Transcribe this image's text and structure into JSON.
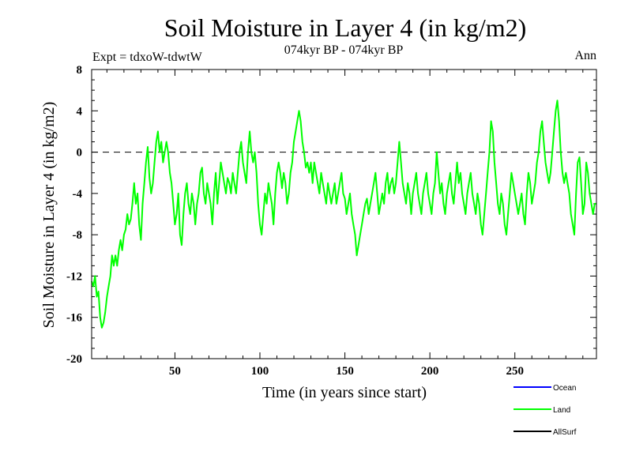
{
  "chart_data": {
    "type": "line",
    "title": "Soil Moisture in Layer 4 (in kg/m2)",
    "subtitle": "074kyr BP - 074kyr BP",
    "experiment": "Expt = tdxoW-tdwtW",
    "season": "Ann",
    "xlabel": "Time (in years since start)",
    "ylabel": "Soil Moisture in Layer 4 (in kg/m2)",
    "xlim": [
      1,
      298
    ],
    "ylim": [
      -20,
      8
    ],
    "x_ticks": [
      50,
      100,
      150,
      200,
      250
    ],
    "y_ticks": [
      -20,
      -16,
      -12,
      -8,
      -4,
      0,
      4,
      8
    ],
    "x_tick_labels": [
      "50",
      "100",
      "150",
      "200",
      "250"
    ],
    "y_tick_labels": [
      "-20",
      "-16",
      "-12",
      "-8",
      "-4",
      "0",
      "4",
      "8"
    ],
    "reference_line": 0,
    "legend": [
      {
        "name": "Ocean",
        "color": "#0000ff"
      },
      {
        "name": "Land",
        "color": "#00ff00"
      },
      {
        "name": "AllSurf",
        "color": "#000000"
      }
    ],
    "series": [
      {
        "name": "Land",
        "color": "#00ff00",
        "anchors": [
          [
            1,
            -12.5
          ],
          [
            2,
            -13
          ],
          [
            3,
            -12
          ],
          [
            4,
            -14
          ],
          [
            5,
            -13.5
          ],
          [
            6,
            -16
          ],
          [
            7,
            -17
          ],
          [
            8,
            -16.5
          ],
          [
            9,
            -15.5
          ],
          [
            10,
            -14
          ],
          [
            11,
            -13
          ],
          [
            12,
            -12
          ],
          [
            13,
            -10
          ],
          [
            14,
            -11
          ],
          [
            15,
            -10
          ],
          [
            16,
            -11
          ],
          [
            17,
            -9.5
          ],
          [
            18,
            -8.5
          ],
          [
            19,
            -9.5
          ],
          [
            20,
            -8
          ],
          [
            21,
            -7.5
          ],
          [
            22,
            -6
          ],
          [
            23,
            -7
          ],
          [
            24,
            -6.5
          ],
          [
            25,
            -5
          ],
          [
            26,
            -3
          ],
          [
            27,
            -5
          ],
          [
            28,
            -4
          ],
          [
            29,
            -7
          ],
          [
            30,
            -8.5
          ],
          [
            31,
            -5
          ],
          [
            32,
            -3
          ],
          [
            33,
            -1
          ],
          [
            34,
            0.5
          ],
          [
            35,
            -2.5
          ],
          [
            36,
            -4
          ],
          [
            37,
            -3
          ],
          [
            38,
            -1
          ],
          [
            39,
            1
          ],
          [
            40,
            2
          ],
          [
            41,
            0
          ],
          [
            42,
            1
          ],
          [
            43,
            -1
          ],
          [
            44,
            0
          ],
          [
            45,
            1
          ],
          [
            46,
            0
          ],
          [
            47,
            -2
          ],
          [
            48,
            -3
          ],
          [
            49,
            -5
          ],
          [
            50,
            -7
          ],
          [
            51,
            -6
          ],
          [
            52,
            -4
          ],
          [
            53,
            -8
          ],
          [
            54,
            -9
          ],
          [
            55,
            -6
          ],
          [
            56,
            -4
          ],
          [
            57,
            -3
          ],
          [
            58,
            -5
          ],
          [
            59,
            -6
          ],
          [
            60,
            -4
          ],
          [
            61,
            -5
          ],
          [
            62,
            -7
          ],
          [
            63,
            -5
          ],
          [
            64,
            -4
          ],
          [
            65,
            -2
          ],
          [
            66,
            -1.5
          ],
          [
            67,
            -4
          ],
          [
            68,
            -5
          ],
          [
            69,
            -3
          ],
          [
            70,
            -4
          ],
          [
            71,
            -5
          ],
          [
            72,
            -7
          ],
          [
            73,
            -4
          ],
          [
            74,
            -2
          ],
          [
            75,
            -5
          ],
          [
            76,
            -3
          ],
          [
            77,
            -1
          ],
          [
            78,
            -2
          ],
          [
            79,
            -3
          ],
          [
            80,
            -4
          ],
          [
            81,
            -2.5
          ],
          [
            82,
            -3
          ],
          [
            83,
            -4
          ],
          [
            84,
            -2
          ],
          [
            85,
            -3
          ],
          [
            86,
            -4
          ],
          [
            87,
            -2
          ],
          [
            88,
            0
          ],
          [
            89,
            1
          ],
          [
            90,
            -1
          ],
          [
            91,
            -2
          ],
          [
            92,
            -3
          ],
          [
            93,
            0
          ],
          [
            94,
            2
          ],
          [
            95,
            0
          ],
          [
            96,
            -1
          ],
          [
            97,
            0
          ],
          [
            98,
            -2
          ],
          [
            99,
            -5
          ],
          [
            100,
            -7
          ],
          [
            101,
            -8
          ],
          [
            102,
            -6
          ],
          [
            103,
            -4
          ],
          [
            104,
            -5
          ],
          [
            105,
            -3
          ],
          [
            106,
            -4
          ],
          [
            107,
            -5
          ],
          [
            108,
            -7
          ],
          [
            109,
            -4
          ],
          [
            110,
            -2
          ],
          [
            111,
            -1
          ],
          [
            112,
            -2
          ],
          [
            113,
            -3.5
          ],
          [
            114,
            -2
          ],
          [
            115,
            -3
          ],
          [
            116,
            -5
          ],
          [
            117,
            -4
          ],
          [
            118,
            -2
          ],
          [
            119,
            -1
          ],
          [
            120,
            1
          ],
          [
            121,
            2
          ],
          [
            122,
            3
          ],
          [
            123,
            4
          ],
          [
            124,
            3
          ],
          [
            125,
            1
          ],
          [
            126,
            0
          ],
          [
            127,
            -1.5
          ],
          [
            128,
            -1
          ],
          [
            129,
            -2
          ],
          [
            130,
            -1
          ],
          [
            131,
            -3
          ],
          [
            132,
            -1
          ],
          [
            133,
            -2
          ],
          [
            134,
            -3
          ],
          [
            135,
            -4
          ],
          [
            136,
            -2
          ],
          [
            137,
            -3
          ],
          [
            138,
            -4
          ],
          [
            139,
            -5
          ],
          [
            140,
            -3
          ],
          [
            141,
            -4
          ],
          [
            142,
            -5
          ],
          [
            143,
            -4
          ],
          [
            144,
            -3
          ],
          [
            145,
            -5
          ],
          [
            146,
            -4
          ],
          [
            147,
            -3
          ],
          [
            148,
            -2
          ],
          [
            149,
            -4
          ],
          [
            150,
            -4.5
          ],
          [
            151,
            -6
          ],
          [
            152,
            -5
          ],
          [
            153,
            -4
          ],
          [
            154,
            -6
          ],
          [
            155,
            -7
          ],
          [
            156,
            -8
          ],
          [
            157,
            -10
          ],
          [
            158,
            -9
          ],
          [
            159,
            -8
          ],
          [
            160,
            -7
          ],
          [
            161,
            -6
          ],
          [
            162,
            -5
          ],
          [
            163,
            -4.5
          ],
          [
            164,
            -6
          ],
          [
            165,
            -5
          ],
          [
            166,
            -4
          ],
          [
            167,
            -3
          ],
          [
            168,
            -2
          ],
          [
            169,
            -4
          ],
          [
            170,
            -6
          ],
          [
            171,
            -5
          ],
          [
            172,
            -4
          ],
          [
            173,
            -5
          ],
          [
            174,
            -3
          ],
          [
            175,
            -2
          ],
          [
            176,
            -4
          ],
          [
            177,
            -3
          ],
          [
            178,
            -2.5
          ],
          [
            179,
            -4
          ],
          [
            180,
            -3
          ],
          [
            181,
            -1
          ],
          [
            182,
            1
          ],
          [
            183,
            -1
          ],
          [
            184,
            -3
          ],
          [
            185,
            -4
          ],
          [
            186,
            -5
          ],
          [
            187,
            -3
          ],
          [
            188,
            -4
          ],
          [
            189,
            -6
          ],
          [
            190,
            -4
          ],
          [
            191,
            -3
          ],
          [
            192,
            -2
          ],
          [
            193,
            -4
          ],
          [
            194,
            -5
          ],
          [
            195,
            -6
          ],
          [
            196,
            -4
          ],
          [
            197,
            -3
          ],
          [
            198,
            -2
          ],
          [
            199,
            -4
          ],
          [
            200,
            -5
          ],
          [
            201,
            -6
          ],
          [
            202,
            -4
          ],
          [
            203,
            -3
          ],
          [
            204,
            0
          ],
          [
            205,
            -2
          ],
          [
            206,
            -4
          ],
          [
            207,
            -3
          ],
          [
            208,
            -5
          ],
          [
            209,
            -6
          ],
          [
            210,
            -4
          ],
          [
            211,
            -3
          ],
          [
            212,
            -2
          ],
          [
            213,
            -4
          ],
          [
            214,
            -5
          ],
          [
            215,
            -3
          ],
          [
            216,
            -1
          ],
          [
            217,
            -3
          ],
          [
            218,
            -2
          ],
          [
            219,
            -4
          ],
          [
            220,
            -5
          ],
          [
            221,
            -6
          ],
          [
            222,
            -4
          ],
          [
            223,
            -3
          ],
          [
            224,
            -2
          ],
          [
            225,
            -4
          ],
          [
            226,
            -5
          ],
          [
            227,
            -6
          ],
          [
            228,
            -4
          ],
          [
            229,
            -5
          ],
          [
            230,
            -7
          ],
          [
            231,
            -8
          ],
          [
            232,
            -6
          ],
          [
            233,
            -4
          ],
          [
            234,
            -2
          ],
          [
            235,
            0
          ],
          [
            236,
            3
          ],
          [
            237,
            2
          ],
          [
            238,
            -1
          ],
          [
            239,
            -3
          ],
          [
            240,
            -5
          ],
          [
            241,
            -6
          ],
          [
            242,
            -4
          ],
          [
            243,
            -5
          ],
          [
            244,
            -7
          ],
          [
            245,
            -8
          ],
          [
            246,
            -6
          ],
          [
            247,
            -4
          ],
          [
            248,
            -2
          ],
          [
            249,
            -3
          ],
          [
            250,
            -4
          ],
          [
            251,
            -5
          ],
          [
            252,
            -6
          ],
          [
            253,
            -5
          ],
          [
            254,
            -4
          ],
          [
            255,
            -6
          ],
          [
            256,
            -7
          ],
          [
            257,
            -4
          ],
          [
            258,
            -2
          ],
          [
            259,
            -3
          ],
          [
            260,
            -5
          ],
          [
            261,
            -4
          ],
          [
            262,
            -3
          ],
          [
            263,
            -1
          ],
          [
            264,
            0
          ],
          [
            265,
            2
          ],
          [
            266,
            3
          ],
          [
            267,
            1
          ],
          [
            268,
            -1
          ],
          [
            269,
            -2
          ],
          [
            270,
            -3
          ],
          [
            271,
            -2
          ],
          [
            272,
            0
          ],
          [
            273,
            2
          ],
          [
            274,
            4
          ],
          [
            275,
            5
          ],
          [
            276,
            3
          ],
          [
            277,
            0
          ],
          [
            278,
            -2
          ],
          [
            279,
            -3
          ],
          [
            280,
            -2
          ],
          [
            281,
            -3
          ],
          [
            282,
            -4
          ],
          [
            283,
            -6
          ],
          [
            284,
            -7
          ],
          [
            285,
            -8
          ],
          [
            286,
            -4
          ],
          [
            287,
            -1
          ],
          [
            288,
            -0.5
          ],
          [
            289,
            -3
          ],
          [
            290,
            -6
          ],
          [
            291,
            -5
          ],
          [
            292,
            -1
          ],
          [
            293,
            -2
          ],
          [
            294,
            -4
          ],
          [
            295,
            -5
          ],
          [
            296,
            -6
          ],
          [
            297,
            -5
          ],
          [
            298,
            -5
          ]
        ]
      }
    ]
  }
}
